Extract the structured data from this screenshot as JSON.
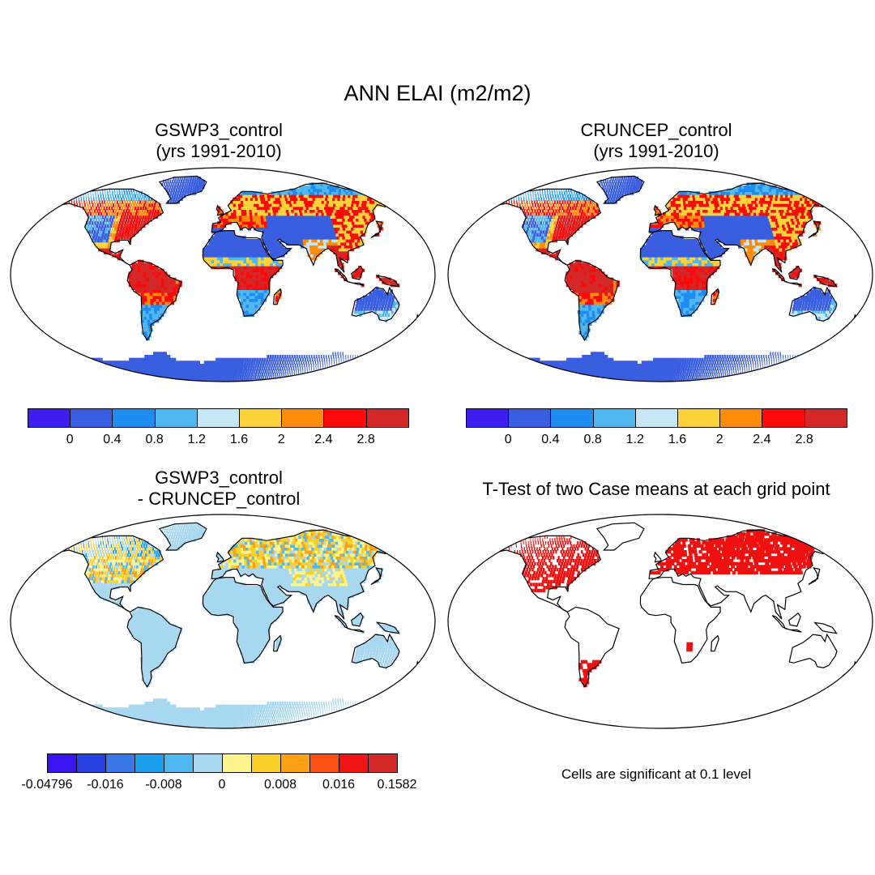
{
  "title": "ANN ELAI (m2/m2)",
  "panels": [
    {
      "id": "p1",
      "title_line1": "GSWP3_control",
      "title_line2": "(yrs 1991-2010)",
      "kind": "elai"
    },
    {
      "id": "p2",
      "title_line1": "CRUNCEP_control",
      "title_line2": "(yrs 1991-2010)",
      "kind": "elai"
    },
    {
      "id": "p3",
      "title_line1": "GSWP3_control",
      "title_line2": "- CRUNCEP_control",
      "kind": "diff"
    },
    {
      "id": "p4",
      "title_line1": "T-Test of two Case means at each grid point",
      "title_line2": "",
      "kind": "ttest"
    }
  ],
  "colorbars": {
    "elai": {
      "colors": [
        "#3e1ef0",
        "#3a5ee0",
        "#1e8cf0",
        "#50b8f0",
        "#c6e8f6",
        "#fcd23a",
        "#fc8c0a",
        "#fc0a0a",
        "#d42828"
      ],
      "labels": [
        "0",
        "0.4",
        "0.8",
        "1.2",
        "1.6",
        "2",
        "2.4",
        "2.8"
      ]
    },
    "diff": {
      "colors": [
        "#3c14f0",
        "#2840e0",
        "#3a78e8",
        "#1ea0f0",
        "#50b8f0",
        "#a8d8f0",
        "#fcf48c",
        "#fcd02c",
        "#fca014",
        "#fc5014",
        "#f01414",
        "#d42828"
      ],
      "labels": [
        "-0.04796",
        "-0.016",
        "-0.008",
        "0",
        "0.008",
        "0.016",
        "0.1582"
      ]
    }
  },
  "note": "Cells are significant at 0.1 level",
  "map_colors": {
    "ocean": "#ffffff",
    "outline": "#000000",
    "signif": "#f01010"
  }
}
